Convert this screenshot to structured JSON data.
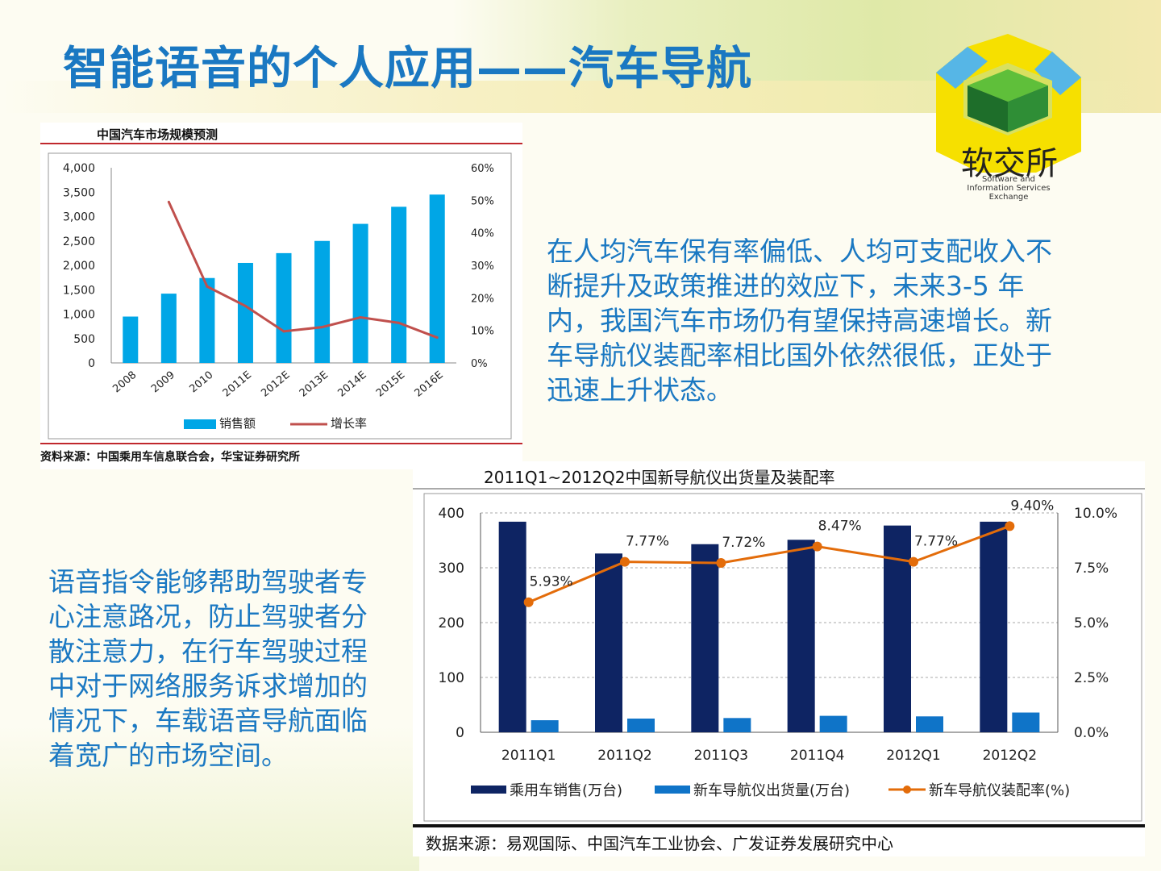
{
  "slide": {
    "title": "智能语音的个人应用——汽车导航",
    "paragraph_right": "在人均汽车保有率偏低、人均可支配收入不断提升及政策推进的效应下，未来3-5 年内，我国汽车市场仍有望保持高速增长。新车导航仪装配率相比国外依然很低，正处于迅速上升状态。",
    "paragraph_left": "语音指令能够帮助驾驶者专心注意路况，防止驾驶者分散注意力，在行车驾驶过程中对于网络服务诉求增加的情况下，车载语音导航面临着宽广的市场空间。",
    "logo_text": "软交所",
    "logo_subtext": "Software and Information Services Exchange"
  },
  "colors": {
    "title": "#1a78c2",
    "bar_sales": "#00a6e6",
    "line_growth": "#c0504d",
    "bar_car": "#0e2463",
    "bar_nav": "#0f74c8",
    "line_rate": "#e36c0a"
  },
  "chart_data": [
    {
      "type": "bar",
      "title": "中国汽车市场规模预测",
      "source": "资料来源：中国乘用车信息联合会，华宝证券研究所",
      "categories": [
        "2008",
        "2009",
        "2010",
        "2011E",
        "2012E",
        "2013E",
        "2014E",
        "2015E",
        "2016E"
      ],
      "series": [
        {
          "name": "销售额",
          "kind": "bar",
          "axis": "left",
          "values": [
            950,
            1420,
            1740,
            2050,
            2250,
            2500,
            2850,
            3200,
            3450
          ]
        },
        {
          "name": "增长率",
          "kind": "line",
          "axis": "right",
          "values": [
            null,
            49.5,
            23.5,
            17.5,
            9.7,
            11.0,
            14.0,
            12.3,
            7.8
          ]
        }
      ],
      "ylim": [
        0,
        4000
      ],
      "y_ticks": [
        "4,000",
        "3,500",
        "3,000",
        "2,500",
        "2,000",
        "1,500",
        "1,000",
        "500",
        "0"
      ],
      "y2lim": [
        0,
        60
      ],
      "y2_ticks": [
        "60%",
        "50%",
        "40%",
        "30%",
        "20%",
        "10%",
        "0%"
      ],
      "grid": false,
      "legend": "bottom"
    },
    {
      "type": "bar",
      "title": "2011Q1~2012Q2中国新导航仪出货量及装配率",
      "source": "数据来源：易观国际、中国汽车工业协会、广发证券发展研究中心",
      "categories": [
        "2011Q1",
        "2011Q2",
        "2011Q3",
        "2011Q4",
        "2012Q1",
        "2012Q2"
      ],
      "series": [
        {
          "name": "乘用车销售(万台)",
          "kind": "bar",
          "axis": "left",
          "values": [
            384,
            326,
            343,
            351,
            377,
            384
          ]
        },
        {
          "name": "新车导航仪出货量(万台)",
          "kind": "bar",
          "axis": "left",
          "values": [
            22,
            25,
            26,
            30,
            29,
            36
          ]
        },
        {
          "name": "新车导航仪装配率(%)",
          "kind": "line",
          "axis": "right",
          "values": [
            5.93,
            7.77,
            7.72,
            8.47,
            7.77,
            9.4
          ]
        }
      ],
      "data_labels": [
        "5.93%",
        "7.77%",
        "7.72%",
        "8.47%",
        "7.77%",
        "9.40%"
      ],
      "ylim": [
        0,
        400
      ],
      "y_ticks": [
        "400",
        "300",
        "200",
        "100",
        "0"
      ],
      "y2lim": [
        0,
        10
      ],
      "y2_ticks": [
        "10.0%",
        "7.5%",
        "5.0%",
        "2.5%",
        "0.0%"
      ],
      "grid": true,
      "legend": "bottom"
    }
  ]
}
